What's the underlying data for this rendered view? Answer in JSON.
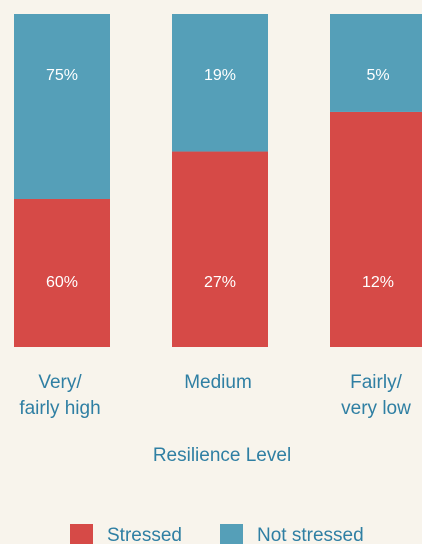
{
  "chart_data": {
    "type": "bar",
    "stacked": true,
    "categories": [
      [
        "Very/",
        "fairly high"
      ],
      [
        "Medium"
      ],
      [
        "Fairly/",
        "very low"
      ]
    ],
    "x_label": "Resilience Level",
    "series": [
      {
        "name": "Stressed",
        "color": "#d64a47",
        "values": [
          60,
          27,
          12
        ],
        "value_labels": [
          "60%",
          "27%",
          "12%"
        ]
      },
      {
        "name": "Not stressed",
        "color": "#559fb8",
        "values": [
          75,
          19,
          5
        ],
        "value_labels": [
          "75%",
          "19%",
          "5%"
        ]
      }
    ],
    "legend": "bottom"
  }
}
